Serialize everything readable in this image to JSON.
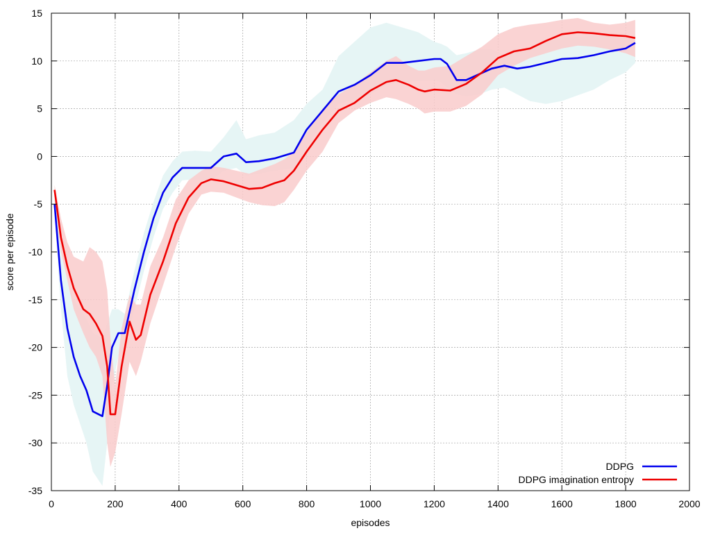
{
  "chart_data": {
    "type": "line",
    "title": "",
    "xlabel": "episodes",
    "ylabel": "score per episode",
    "xlim": [
      0,
      2000
    ],
    "ylim": [
      -35,
      15
    ],
    "xticks": [
      0,
      200,
      400,
      600,
      800,
      1000,
      1200,
      1400,
      1600,
      1800,
      2000
    ],
    "yticks": [
      -35,
      -30,
      -25,
      -20,
      -15,
      -10,
      -5,
      0,
      5,
      10,
      15
    ],
    "grid": true,
    "legend_position": "bottom-right",
    "series": [
      {
        "name": "DDPG",
        "color": "#0000ee",
        "band_color": "#e6f5f5",
        "x": [
          10,
          30,
          50,
          70,
          90,
          110,
          130,
          160,
          175,
          190,
          210,
          230,
          260,
          290,
          320,
          350,
          380,
          410,
          450,
          500,
          540,
          580,
          610,
          650,
          700,
          760,
          800,
          850,
          900,
          950,
          1000,
          1050,
          1100,
          1150,
          1200,
          1220,
          1240,
          1270,
          1300,
          1340,
          1380,
          1420,
          1460,
          1500,
          1550,
          1600,
          1650,
          1700,
          1750,
          1800,
          1830
        ],
        "y": [
          -5,
          -13,
          -18,
          -21,
          -23,
          -24.5,
          -26.7,
          -27.2,
          -24,
          -20,
          -18.5,
          -18.5,
          -14,
          -10,
          -6.5,
          -3.8,
          -2.2,
          -1.2,
          -1.2,
          -1.2,
          0.0,
          0.3,
          -0.6,
          -0.5,
          -0.2,
          0.4,
          2.8,
          4.8,
          6.8,
          7.5,
          8.5,
          9.8,
          9.8,
          10.0,
          10.2,
          10.2,
          9.7,
          8.0,
          8.0,
          8.6,
          9.2,
          9.5,
          9.2,
          9.4,
          9.8,
          10.2,
          10.3,
          10.6,
          11.0,
          11.3,
          11.9
        ],
        "lower": [
          -6,
          -16,
          -23,
          -26,
          -28,
          -30,
          -33,
          -34.5,
          -30,
          -24,
          -21,
          -20,
          -16,
          -12,
          -8.5,
          -5.5,
          -3.8,
          -2.5,
          -2.4,
          -2.5,
          -1.5,
          -1.2,
          -2.0,
          -1.8,
          -1.5,
          -1.2,
          1.0,
          3.5,
          5.5,
          6.0,
          6.5,
          7.5,
          7.8,
          7.9,
          8.0,
          7.8,
          7.2,
          6.5,
          6.3,
          6.5,
          7.0,
          7.2,
          6.5,
          5.8,
          5.5,
          5.8,
          6.4,
          7.0,
          8.0,
          8.8,
          9.8
        ],
        "upper": [
          -4,
          -10,
          -13,
          -15,
          -16,
          -17,
          -18.5,
          -19,
          -17.5,
          -16,
          -16,
          -16.5,
          -12,
          -8,
          -4.8,
          -2.0,
          -0.5,
          0.5,
          0.6,
          0.5,
          2.0,
          3.8,
          1.8,
          2.2,
          2.5,
          3.8,
          5.5,
          7.0,
          10.5,
          12.0,
          13.5,
          14.0,
          13.5,
          13.0,
          12.0,
          11.8,
          11.5,
          10.6,
          10.8,
          11.2,
          11.2,
          10.6,
          11.0,
          11.5,
          12.0,
          12.4,
          12.5,
          12.6,
          12.6,
          12.4,
          12.8
        ]
      },
      {
        "name": "DDPG imagination entropy",
        "color": "#ee0000",
        "band_color": "#f9cbcb",
        "x": [
          10,
          30,
          50,
          70,
          100,
          120,
          140,
          160,
          175,
          185,
          200,
          220,
          245,
          265,
          280,
          310,
          350,
          390,
          430,
          470,
          500,
          540,
          580,
          620,
          660,
          700,
          730,
          760,
          800,
          850,
          900,
          950,
          1000,
          1050,
          1080,
          1120,
          1150,
          1170,
          1200,
          1250,
          1300,
          1350,
          1400,
          1450,
          1500,
          1550,
          1600,
          1650,
          1700,
          1750,
          1800,
          1830
        ],
        "y": [
          -3.5,
          -8.5,
          -11.5,
          -13.8,
          -16,
          -16.5,
          -17.5,
          -18.8,
          -22,
          -27.0,
          -27.0,
          -22,
          -17.3,
          -19.2,
          -18.7,
          -14.5,
          -11,
          -7,
          -4.3,
          -2.8,
          -2.4,
          -2.6,
          -3.0,
          -3.4,
          -3.3,
          -2.8,
          -2.5,
          -1.5,
          0.5,
          2.8,
          4.8,
          5.6,
          6.9,
          7.8,
          8.0,
          7.5,
          7.0,
          6.8,
          7.0,
          6.9,
          7.6,
          8.8,
          10.3,
          11.0,
          11.3,
          12.1,
          12.8,
          13.0,
          12.9,
          12.7,
          12.6,
          12.4
        ],
        "lower": [
          -4,
          -10,
          -13,
          -16,
          -18.5,
          -20,
          -21,
          -23,
          -30,
          -32.5,
          -31,
          -27,
          -21.5,
          -23,
          -21.5,
          -17.5,
          -13.5,
          -9.5,
          -6.0,
          -4.0,
          -3.7,
          -3.8,
          -4.3,
          -4.8,
          -5.1,
          -5.2,
          -4.8,
          -3.5,
          -1.5,
          0.5,
          3.5,
          4.8,
          5.6,
          6.2,
          6.0,
          5.5,
          5.0,
          4.5,
          4.7,
          4.7,
          5.3,
          6.5,
          8.5,
          9.5,
          10.3,
          10.8,
          11.3,
          11.6,
          11.5,
          11.2,
          10.8,
          10.4
        ],
        "upper": [
          -3,
          -6.5,
          -9,
          -10.5,
          -11,
          -9.5,
          -10,
          -11,
          -14,
          -19,
          -24,
          -18,
          -14.5,
          -15.5,
          -15.5,
          -11.5,
          -8.5,
          -4.5,
          -2.5,
          -1.5,
          -1.0,
          -1.2,
          -1.5,
          -1.8,
          -1.3,
          -0.8,
          -0.3,
          0.5,
          2.5,
          5.0,
          6.5,
          7.5,
          8.8,
          10.0,
          10.5,
          9.5,
          9.0,
          9.0,
          9.3,
          9.5,
          10.5,
          11.5,
          12.8,
          13.5,
          13.8,
          14.0,
          14.3,
          14.5,
          14.0,
          13.8,
          14.0,
          14.3
        ]
      }
    ]
  }
}
